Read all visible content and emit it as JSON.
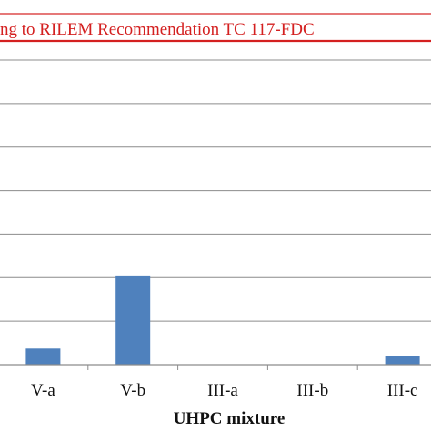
{
  "chart_data": {
    "type": "bar",
    "title": "",
    "xlabel": "UHPC mixture",
    "ylabel": "",
    "categories": [
      "V-a",
      "V-b",
      "III-a",
      "III-b",
      "III-c"
    ],
    "values": [
      0.37,
      2.05,
      0,
      0,
      0.2
    ],
    "ylim": [
      0,
      7
    ],
    "grid": true,
    "bar_color": "#4f81bd",
    "grid_color": "#8c8c8c",
    "limit_line": {
      "label": "ng to RILEM Recommendation TC 117-FDC",
      "value": 7,
      "color": "#d42020"
    }
  }
}
